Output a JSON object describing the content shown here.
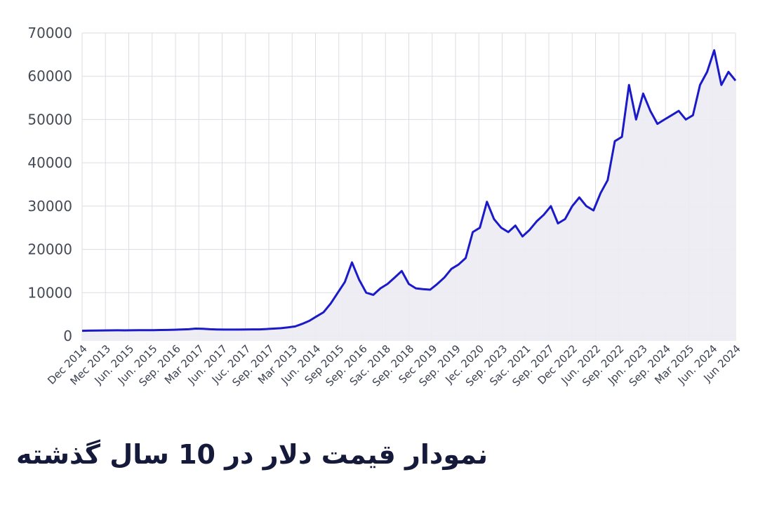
{
  "chart_data": {
    "type": "area",
    "title": "نمودار قیمت دلار در 10 سال گذشته",
    "xlabel": "",
    "ylabel": "",
    "ylim": [
      0,
      70000
    ],
    "yticks": [
      0,
      10000,
      20000,
      30000,
      40000,
      50000,
      60000,
      70000
    ],
    "ytick_labels": [
      "0",
      "10000",
      "20000",
      "30000",
      "40000",
      "50000",
      "60000",
      "70000"
    ],
    "x_tick_labels": [
      "Dec 2014",
      "Mec 2013",
      "Jun. 2015",
      "Jun. 2015",
      "Sep. 2016",
      "Mar 2017",
      "Jun. 2017",
      "Juc. 2017",
      "Sep. 2017",
      "Mar 2013",
      "Jun. 2014",
      "Sep 2015",
      "Sep. 2016",
      "Sac. 2018",
      "Sep. 2018",
      "Sec 2019",
      "Sep. 2019",
      "Jec. 2020",
      "Sep. 2023",
      "Sac. 2021",
      "Sep. 2027",
      "Dec 2022",
      "Jun. 2022",
      "Sep. 2022",
      "Jpn. 2023",
      "Sep. 2024",
      "Mar 2025",
      "Jun. 2024",
      "Jun 2024"
    ],
    "grid": true,
    "legend": "none",
    "colors": {
      "line": "#1a1ac8",
      "fill": "#ecebf3"
    },
    "series": [
      {
        "values": [
          1200,
          1230,
          1250,
          1280,
          1300,
          1310,
          1300,
          1320,
          1330,
          1340,
          1350,
          1380,
          1400,
          1450,
          1500,
          1560,
          1700,
          1650,
          1550,
          1500,
          1480,
          1470,
          1480,
          1500,
          1520,
          1530,
          1600,
          1700,
          1800,
          2000,
          2200,
          2800,
          3500,
          4500,
          5500,
          7500,
          10000,
          12500,
          17000,
          13000,
          10000,
          9500,
          11000,
          12000,
          13500,
          15000,
          12000,
          11000,
          10800,
          10700,
          12000,
          13500,
          15500,
          16500,
          18000,
          24000,
          25000,
          31000,
          27000,
          25000,
          24000,
          25500,
          23000,
          24500,
          26500,
          28000,
          30000,
          26000,
          27000,
          30000,
          32000,
          30000,
          29000,
          33000,
          36000,
          45000,
          46000,
          58000,
          50000,
          56000,
          52000,
          49000,
          50000,
          51000,
          52000,
          50000,
          51000,
          58000,
          61000,
          66000,
          58000,
          61000,
          59000
        ]
      }
    ]
  }
}
